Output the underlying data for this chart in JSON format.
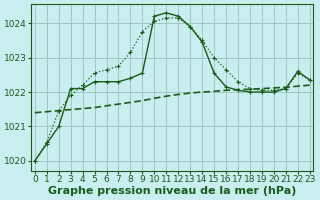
{
  "background_color": "#c8eef0",
  "grid_color": "#a0c8c0",
  "line_color": "#1a5c1a",
  "xlabel": "Graphe pression niveau de la mer (hPa)",
  "xlabel_fontsize": 8,
  "tick_fontsize": 6.5,
  "yticks": [
    1020,
    1021,
    1022,
    1023,
    1024
  ],
  "xticks": [
    0,
    1,
    2,
    3,
    4,
    5,
    6,
    7,
    8,
    9,
    10,
    11,
    12,
    13,
    14,
    15,
    16,
    17,
    18,
    19,
    20,
    21,
    22,
    23
  ],
  "xlim": [
    -0.3,
    23.3
  ],
  "ylim": [
    1019.7,
    1024.55
  ],
  "series_dotted": [
    1020.0,
    1020.55,
    1021.45,
    1021.9,
    1022.2,
    1022.55,
    1022.65,
    1022.75,
    1023.15,
    1023.75,
    1024.05,
    1024.15,
    1024.15,
    1023.9,
    1023.5,
    1023.0,
    1022.65,
    1022.3,
    1022.1,
    1022.05,
    1022.05,
    1022.1,
    1022.55,
    1022.35
  ],
  "series_solid": [
    1020.0,
    null,
    null,
    null,
    1022.1,
    null,
    null,
    null,
    null,
    null,
    1024.2,
    1024.3,
    1024.2,
    null,
    null,
    null,
    null,
    null,
    null,
    null,
    null,
    null,
    1022.6,
    1022.35
  ],
  "series_solid_full": [
    1020.0,
    1020.5,
    1021.0,
    1022.1,
    1022.1,
    1022.3,
    1022.3,
    1022.3,
    1022.4,
    1022.55,
    1024.2,
    1024.3,
    1024.2,
    1023.9,
    1023.45,
    1022.55,
    1022.15,
    1022.05,
    1022.0,
    1022.0,
    1022.0,
    1022.1,
    1022.6,
    1022.35
  ],
  "series_flat": [
    1021.4,
    1021.43,
    1021.46,
    1021.49,
    1021.52,
    1021.55,
    1021.6,
    1021.65,
    1021.7,
    1021.75,
    1021.82,
    1021.88,
    1021.93,
    1021.97,
    1022.0,
    1022.02,
    1022.05,
    1022.07,
    1022.08,
    1022.1,
    1022.12,
    1022.14,
    1022.17,
    1022.2
  ]
}
